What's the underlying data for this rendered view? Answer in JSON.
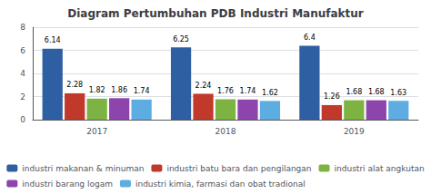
{
  "chart_data": {
    "type": "bar",
    "title": "Diagram Pertumbuhan PDB Industri Manufaktur",
    "categories": [
      "2017",
      "2018",
      "2019"
    ],
    "series": [
      {
        "name": "industri makanan & minuman",
        "color": "#2E5FA3",
        "values": [
          6.14,
          6.25,
          6.4
        ]
      },
      {
        "name": "industri batu bara dan pengilangan",
        "color": "#C0392B",
        "values": [
          2.28,
          2.24,
          1.26
        ]
      },
      {
        "name": "industri alat angkutan",
        "color": "#7CB342",
        "values": [
          1.82,
          1.76,
          1.68
        ]
      },
      {
        "name": "industri barang logam",
        "color": "#8E44AD",
        "values": [
          1.86,
          1.74,
          1.68
        ]
      },
      {
        "name": "industri kimia, farmasi dan obat tradional",
        "color": "#5DADE2",
        "values": [
          1.74,
          1.62,
          1.63
        ]
      }
    ],
    "ylim": [
      0,
      8
    ],
    "yticks": [
      0,
      2,
      4,
      6,
      8
    ],
    "grid": true,
    "data_labels": true,
    "legend": "bottom"
  }
}
